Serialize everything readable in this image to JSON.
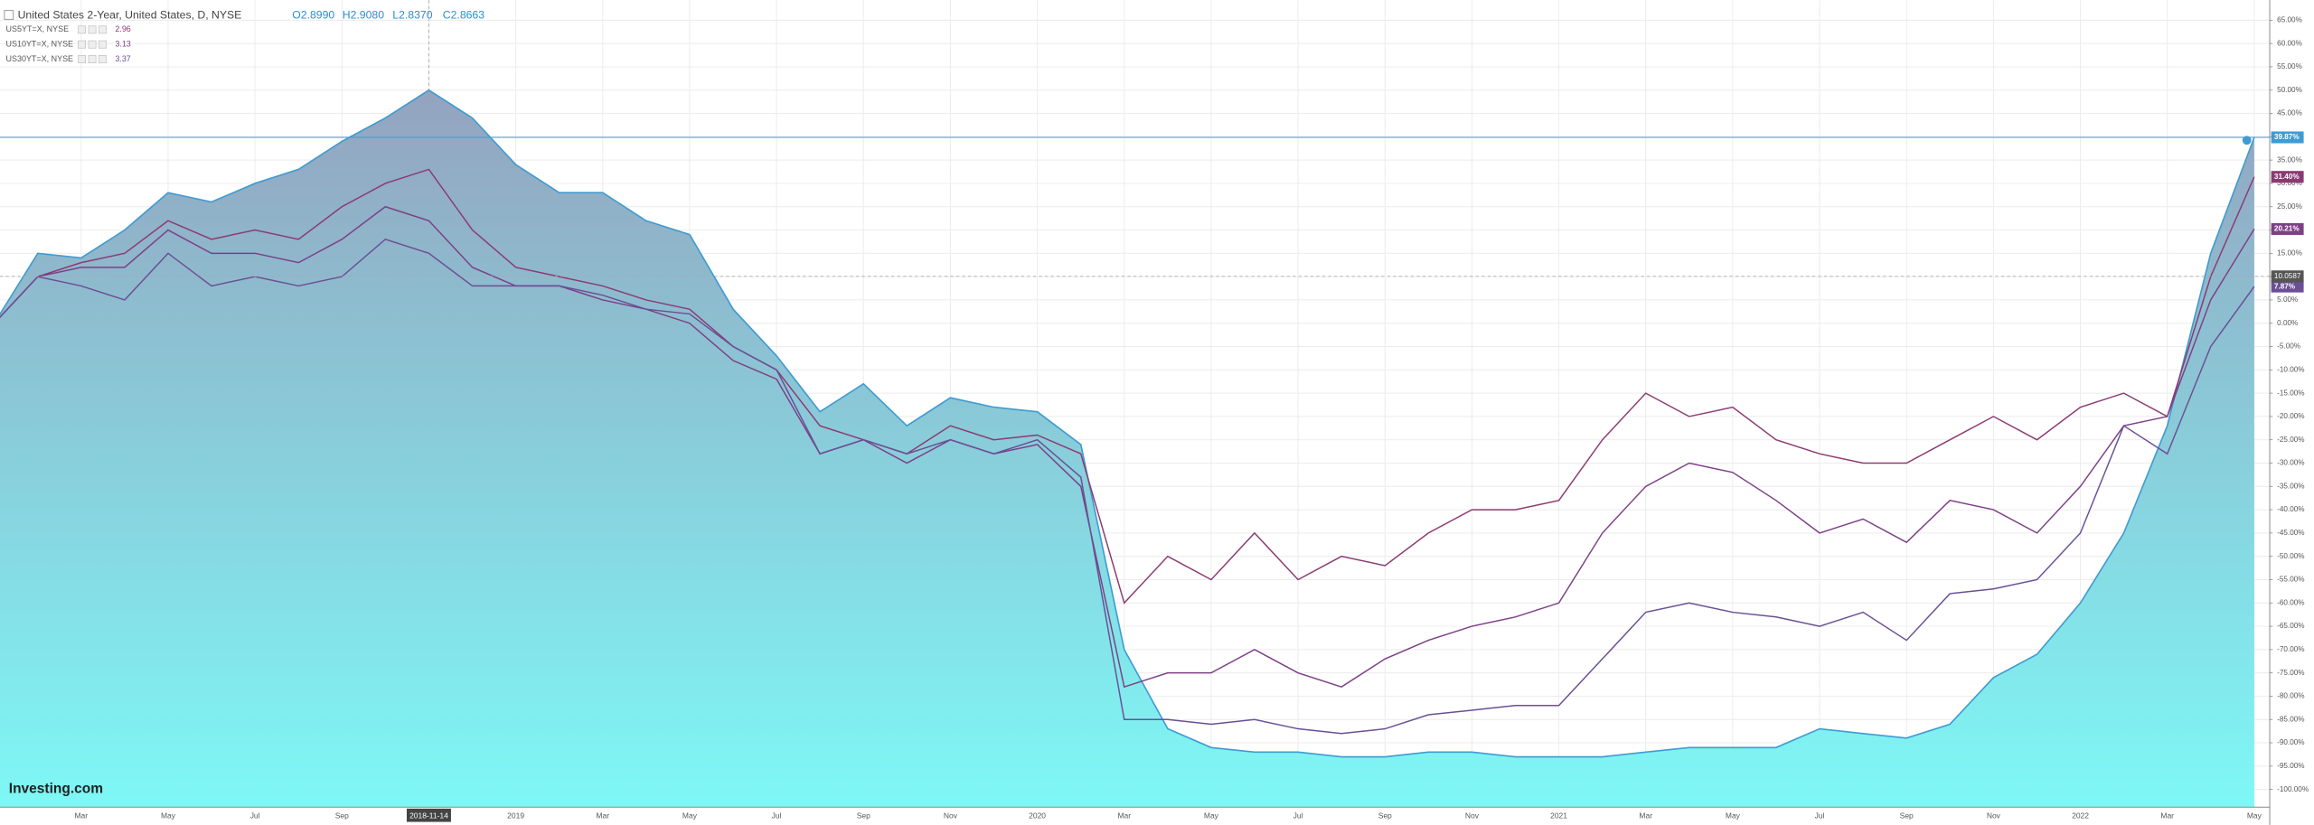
{
  "chart_data": {
    "type": "area-compare",
    "title": "United States 2-Year, United States, D, NYSE",
    "ohlc": [
      "O2.8990",
      "H2.9080",
      "L2.8370",
      "C2.8663"
    ],
    "watermark": "Investing.com",
    "crosshair_y": 10.0587,
    "categories": [
      null,
      null,
      "Mar",
      null,
      "May",
      null,
      "Jul",
      null,
      "Sep",
      null,
      "2018-11-14",
      null,
      "2019",
      null,
      "Mar",
      null,
      "May",
      null,
      "Jul",
      null,
      "Sep",
      null,
      "Nov",
      null,
      "2020",
      null,
      "Mar",
      null,
      "May",
      null,
      "Jul",
      null,
      "Sep",
      null,
      "Nov",
      null,
      "2021",
      null,
      "Mar",
      null,
      "May",
      null,
      "Jul",
      null,
      "Sep",
      null,
      "Nov",
      null,
      "2022",
      null,
      "Mar",
      null,
      "May"
    ],
    "series": [
      {
        "name": "United States 2-Year",
        "color": "#3f9bd1",
        "end_label": "39.87%",
        "values": [
          0,
          15,
          14,
          20,
          28,
          26,
          30,
          33,
          39,
          44,
          50,
          44,
          34,
          28,
          28,
          22,
          19,
          3,
          -7,
          -19,
          -13,
          -22,
          -16,
          -18,
          -19,
          -26,
          -70,
          -87,
          -91,
          -92,
          -92,
          -93,
          -93,
          -92,
          -92,
          -93,
          -93,
          -93,
          -92,
          -91,
          -91,
          -91,
          -87,
          -88,
          -89,
          -86,
          -76,
          -71,
          -60,
          -45,
          -22,
          15,
          39.87
        ]
      },
      {
        "name": "US5YT=X, NYSE",
        "legend_value": "2.96",
        "color": "#8b3a72",
        "end_label": "31.40%",
        "values": [
          0,
          10,
          13,
          15,
          22,
          18,
          20,
          18,
          25,
          30,
          33,
          20,
          12,
          10,
          8,
          5,
          3,
          -5,
          -10,
          -22,
          -25,
          -28,
          -22,
          -25,
          -24,
          -28,
          -60,
          -50,
          -55,
          -45,
          -55,
          -50,
          -52,
          -45,
          -40,
          -40,
          -38,
          -25,
          -15,
          -20,
          -18,
          -25,
          -28,
          -30,
          -30,
          -25,
          -20,
          -25,
          -18,
          -15,
          -20,
          10,
          31.4
        ]
      },
      {
        "name": "US10YT=X, NYSE",
        "legend_value": "3.13",
        "color": "#7d3f86",
        "end_label": "20.21%",
        "values": [
          0,
          10,
          12,
          12,
          20,
          15,
          15,
          13,
          18,
          25,
          22,
          12,
          8,
          8,
          5,
          3,
          0,
          -8,
          -12,
          -28,
          -25,
          -30,
          -25,
          -28,
          -26,
          -35,
          -78,
          -75,
          -75,
          -70,
          -75,
          -78,
          -72,
          -68,
          -65,
          -63,
          -60,
          -45,
          -35,
          -30,
          -32,
          -38,
          -45,
          -42,
          -47,
          -38,
          -40,
          -45,
          -35,
          -22,
          -20,
          5,
          20.21
        ]
      },
      {
        "name": "US30YT=X, NYSE",
        "legend_value": "3.37",
        "color": "#6a4f95",
        "end_label": "7.87%",
        "values": [
          0,
          10,
          8,
          5,
          15,
          8,
          10,
          8,
          10,
          18,
          15,
          8,
          8,
          8,
          6,
          3,
          2,
          -5,
          -10,
          -28,
          -25,
          -28,
          -25,
          -28,
          -25,
          -33,
          -85,
          -85,
          -86,
          -85,
          -87,
          -88,
          -87,
          -84,
          -83,
          -82,
          -82,
          -72,
          -62,
          -60,
          -62,
          -63,
          -65,
          -62,
          -68,
          -58,
          -57,
          -55,
          -45,
          -22,
          -28,
          -5,
          7.87
        ]
      }
    ],
    "ylim": [
      -103.8,
      69.3
    ],
    "yticks": [
      {
        "value": 65,
        "label": "65.00%"
      },
      {
        "value": 60,
        "label": "60.00%"
      },
      {
        "value": 55,
        "label": "55.00%"
      },
      {
        "value": 50,
        "label": "50.00%"
      },
      {
        "value": 45,
        "label": "45.00%"
      },
      {
        "value": 40,
        "label": "40.00%"
      },
      {
        "value": 35,
        "label": "35.00%"
      },
      {
        "value": 30,
        "label": "30.00%"
      },
      {
        "value": 25,
        "label": "25.00%"
      },
      {
        "value": 20,
        "label": "20.00%"
      },
      {
        "value": 15,
        "label": "15.00%"
      },
      {
        "value": 10,
        "label": "10.00%"
      },
      {
        "value": 5,
        "label": "5.00%"
      },
      {
        "value": 0,
        "label": "0.00%"
      },
      {
        "value": -5,
        "label": "-5.00%"
      },
      {
        "value": -10,
        "label": "-10.00%"
      },
      {
        "value": -15,
        "label": "-15.00%"
      },
      {
        "value": -20,
        "label": "-20.00%"
      },
      {
        "value": -25,
        "label": "-25.00%"
      },
      {
        "value": -30,
        "label": "-30.00%"
      },
      {
        "value": -35,
        "label": "-35.00%"
      },
      {
        "value": -40,
        "label": "-40.00%"
      },
      {
        "value": -45,
        "label": "-45.00%"
      },
      {
        "value": -50,
        "label": "-50.00%"
      },
      {
        "value": -55,
        "label": "-55.00%"
      },
      {
        "value": -60,
        "label": "-60.00%"
      },
      {
        "value": -65,
        "label": "-65.00%"
      },
      {
        "value": -70,
        "label": "-70.00%"
      },
      {
        "value": -75,
        "label": "-75.00%"
      },
      {
        "value": -80,
        "label": "-80.00%"
      },
      {
        "value": -85,
        "label": "-85.00%"
      },
      {
        "value": -90,
        "label": "-90.00%"
      },
      {
        "value": -95,
        "label": "-95.00%"
      },
      {
        "value": -100,
        "label": "-100.00%"
      }
    ],
    "grid": true
  }
}
